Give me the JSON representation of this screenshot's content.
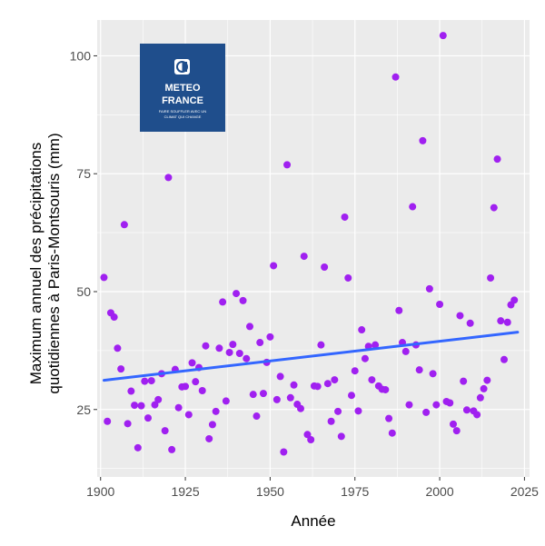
{
  "logo": {
    "line1": "METEO",
    "line2": "FRANCE",
    "tagline1": "FAIRE SOUFFLER AVEC UN",
    "tagline2": "CLIMAT QUI CHANGE"
  },
  "chart_data": {
    "type": "scatter",
    "xlabel": "Année",
    "ylabel_lines": [
      "Maximum annuel des précipitations",
      "quotidiennes à Paris-Montsouris (mm)"
    ],
    "xlim": [
      1899,
      2026.5
    ],
    "ylim": [
      10.7,
      107.6
    ],
    "xticks": [
      1900,
      1925,
      1950,
      1975,
      2000,
      2025
    ],
    "yticks": [
      25,
      50,
      75,
      100
    ],
    "grid": true,
    "point_color": "#a020f0",
    "trend_color": "#3366ff",
    "trend": {
      "x": [
        1901,
        2023
      ],
      "y": [
        31.2,
        41.4
      ]
    },
    "points": [
      [
        1901,
        53.0
      ],
      [
        1902,
        22.5
      ],
      [
        1903,
        45.5
      ],
      [
        1904,
        44.6
      ],
      [
        1905,
        38.0
      ],
      [
        1906,
        33.6
      ],
      [
        1907,
        64.2
      ],
      [
        1908,
        22.0
      ],
      [
        1909,
        28.9
      ],
      [
        1910,
        25.9
      ],
      [
        1911,
        16.9
      ],
      [
        1912,
        25.8
      ],
      [
        1913,
        31.0
      ],
      [
        1914,
        23.2
      ],
      [
        1915,
        31.1
      ],
      [
        1916,
        26.0
      ],
      [
        1917,
        27.1
      ],
      [
        1918,
        32.6
      ],
      [
        1919,
        20.5
      ],
      [
        1920,
        74.2
      ],
      [
        1921,
        16.5
      ],
      [
        1922,
        33.5
      ],
      [
        1923,
        25.4
      ],
      [
        1924,
        29.8
      ],
      [
        1925,
        29.9
      ],
      [
        1926,
        23.9
      ],
      [
        1927,
        34.9
      ],
      [
        1928,
        30.9
      ],
      [
        1929,
        33.9
      ],
      [
        1930,
        29.0
      ],
      [
        1931,
        38.5
      ],
      [
        1932,
        18.8
      ],
      [
        1933,
        21.8
      ],
      [
        1934,
        24.6
      ],
      [
        1935,
        38.0
      ],
      [
        1936,
        47.8
      ],
      [
        1937,
        26.8
      ],
      [
        1938,
        37.1
      ],
      [
        1939,
        38.8
      ],
      [
        1940,
        49.6
      ],
      [
        1941,
        36.9
      ],
      [
        1942,
        48.1
      ],
      [
        1943,
        35.8
      ],
      [
        1944,
        42.6
      ],
      [
        1945,
        28.2
      ],
      [
        1946,
        23.6
      ],
      [
        1947,
        39.2
      ],
      [
        1948,
        28.4
      ],
      [
        1949,
        35.0
      ],
      [
        1950,
        40.4
      ],
      [
        1951,
        55.5
      ],
      [
        1952,
        27.1
      ],
      [
        1953,
        32.0
      ],
      [
        1954,
        16.0
      ],
      [
        1955,
        76.9
      ],
      [
        1956,
        27.5
      ],
      [
        1957,
        30.2
      ],
      [
        1958,
        26.1
      ],
      [
        1959,
        25.2
      ],
      [
        1960,
        57.5
      ],
      [
        1961,
        19.7
      ],
      [
        1962,
        18.6
      ],
      [
        1963,
        30.0
      ],
      [
        1964,
        29.9
      ],
      [
        1965,
        38.7
      ],
      [
        1966,
        55.2
      ],
      [
        1967,
        30.5
      ],
      [
        1968,
        22.5
      ],
      [
        1969,
        31.3
      ],
      [
        1970,
        24.6
      ],
      [
        1971,
        19.3
      ],
      [
        1972,
        65.8
      ],
      [
        1973,
        52.9
      ],
      [
        1974,
        28.0
      ],
      [
        1975,
        33.2
      ],
      [
        1976,
        24.7
      ],
      [
        1977,
        41.9
      ],
      [
        1978,
        35.8
      ],
      [
        1979,
        38.4
      ],
      [
        1980,
        31.3
      ],
      [
        1981,
        38.7
      ],
      [
        1982,
        30.0
      ],
      [
        1983,
        29.3
      ],
      [
        1984,
        29.2
      ],
      [
        1985,
        23.1
      ],
      [
        1986,
        20.0
      ],
      [
        1987,
        95.5
      ],
      [
        1988,
        46.0
      ],
      [
        1989,
        39.2
      ],
      [
        1990,
        37.3
      ],
      [
        1991,
        26.0
      ],
      [
        1992,
        68.0
      ],
      [
        1993,
        38.7
      ],
      [
        1994,
        33.4
      ],
      [
        1995,
        82.0
      ],
      [
        1996,
        24.4
      ],
      [
        1997,
        50.6
      ],
      [
        1998,
        32.6
      ],
      [
        1999,
        26.0
      ],
      [
        2000,
        47.3
      ],
      [
        2001,
        104.3
      ],
      [
        2002,
        26.7
      ],
      [
        2003,
        26.4
      ],
      [
        2004,
        21.9
      ],
      [
        2005,
        20.5
      ],
      [
        2006,
        44.9
      ],
      [
        2007,
        31.0
      ],
      [
        2008,
        24.9
      ],
      [
        2009,
        43.3
      ],
      [
        2010,
        24.7
      ],
      [
        2011,
        23.9
      ],
      [
        2012,
        27.5
      ],
      [
        2013,
        29.4
      ],
      [
        2014,
        31.2
      ],
      [
        2015,
        52.9
      ],
      [
        2016,
        67.8
      ],
      [
        2017,
        78.1
      ],
      [
        2018,
        43.8
      ],
      [
        2019,
        35.6
      ],
      [
        2020,
        43.5
      ],
      [
        2021,
        47.2
      ],
      [
        2022,
        48.2
      ]
    ]
  }
}
